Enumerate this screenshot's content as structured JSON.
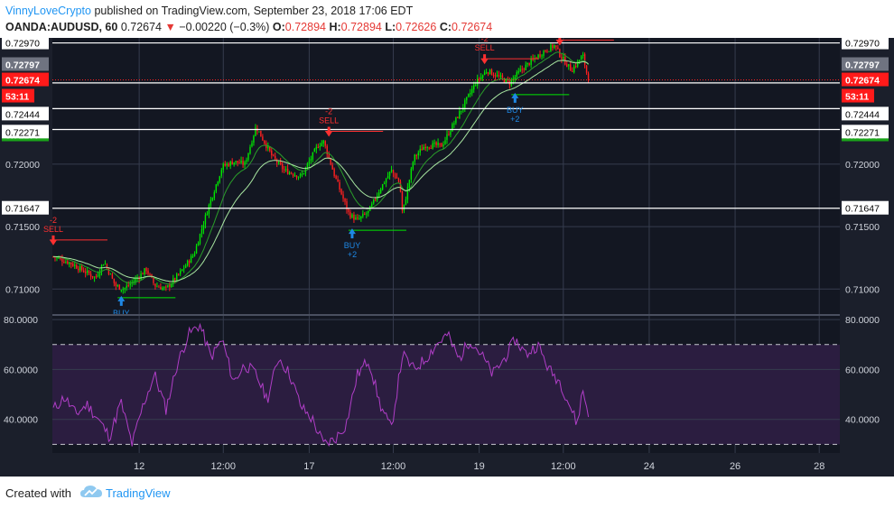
{
  "header": {
    "author": "VinnyLoveCrypto",
    "published_text": "published on TradingView.com, September 23, 2018 17:06 EDT",
    "symbol": "OANDA:AUDUSD, 60",
    "last": "0.72674",
    "change_arrow": "▼",
    "change": "−0.00220 (−0.3%)",
    "o_label": "O:",
    "o_value": "0.72894",
    "h_label": "H:",
    "h_value": "0.72894",
    "l_label": "L:",
    "l_value": "0.72626",
    "c_label": "C:",
    "c_value": "0.72674"
  },
  "footer": {
    "created_with": "Created with",
    "brand": "TradingView"
  },
  "colors": {
    "background": "#131722",
    "grid": "#363c4e",
    "up": "#00e600",
    "down": "#ff2020",
    "ema_fast": "#2a9d2a",
    "ema_slow": "#a8e6a1",
    "rsi_line": "#b03ec7",
    "rsi_band": "#2b1d40",
    "sell": "#ff3030",
    "buy": "#1e88e5",
    "level": "#ffffff"
  },
  "chart_data": [
    {
      "type": "candlestick",
      "pane": "price",
      "ylim": [
        0.708,
        0.7301
      ],
      "price_ticks": [
        "0.72970",
        "0.72797",
        "0.72674",
        "0.72444",
        "0.72277",
        "0.72271",
        "0.72000",
        "0.71647",
        "0.71500",
        "0.71000"
      ],
      "time_ticks": [
        "12",
        "12:00",
        "17",
        "12:00",
        "19",
        "12:00",
        "24",
        "26",
        "28"
      ],
      "countdown": "53:11",
      "horizontal_levels": [
        0.7297,
        0.7265,
        0.72444,
        0.72277,
        0.71647
      ],
      "current_price": 0.72674,
      "path_points": [
        [
          0,
          0.7126
        ],
        [
          6,
          0.7121
        ],
        [
          12,
          0.7113
        ],
        [
          15,
          0.7109
        ],
        [
          18,
          0.7122
        ],
        [
          22,
          0.7103
        ],
        [
          25,
          0.71
        ],
        [
          30,
          0.7109
        ],
        [
          33,
          0.7116
        ],
        [
          36,
          0.7103
        ],
        [
          40,
          0.71
        ],
        [
          45,
          0.7113
        ],
        [
          50,
          0.7128
        ],
        [
          55,
          0.7165
        ],
        [
          60,
          0.7198
        ],
        [
          64,
          0.7202
        ],
        [
          68,
          0.72
        ],
        [
          72,
          0.723
        ],
        [
          78,
          0.7205
        ],
        [
          82,
          0.7195
        ],
        [
          88,
          0.719
        ],
        [
          94,
          0.7215
        ],
        [
          96,
          0.7218
        ],
        [
          100,
          0.719
        ],
        [
          105,
          0.716
        ],
        [
          108,
          0.7155
        ],
        [
          112,
          0.7162
        ],
        [
          116,
          0.718
        ],
        [
          120,
          0.7195
        ],
        [
          123,
          0.7185
        ],
        [
          124,
          0.716
        ],
        [
          128,
          0.7205
        ],
        [
          132,
          0.7215
        ],
        [
          138,
          0.7215
        ],
        [
          144,
          0.724
        ],
        [
          150,
          0.7265
        ],
        [
          154,
          0.7275
        ],
        [
          158,
          0.727
        ],
        [
          162,
          0.7265
        ],
        [
          166,
          0.7275
        ],
        [
          170,
          0.7283
        ],
        [
          174,
          0.729
        ],
        [
          178,
          0.7295
        ],
        [
          180,
          0.7287
        ],
        [
          184,
          0.7275
        ],
        [
          188,
          0.7287
        ],
        [
          190,
          0.7267
        ]
      ],
      "annotations": [
        {
          "kind": "sell",
          "label": "SELL",
          "qty": "-2",
          "x": 0,
          "price": 0.71335
        },
        {
          "kind": "buy",
          "label": "BUY",
          "qty": "",
          "x": 24,
          "price": 0.7096
        },
        {
          "kind": "sell",
          "label": "SELL",
          "qty": "-2",
          "x": 98,
          "price": 0.72205
        },
        {
          "kind": "buy",
          "label": "BUY",
          "qty": "+2",
          "x": 106,
          "price": 0.715
        },
        {
          "kind": "sell",
          "label": "SELL",
          "qty": "-2",
          "x": 153,
          "price": 0.72785
        },
        {
          "kind": "buy",
          "label": "BUY",
          "qty": "+2",
          "x": 164,
          "price": 0.72585
        },
        {
          "kind": "sell",
          "label": "SELL",
          "qty": "",
          "x": 180,
          "price": 0.72935
        }
      ]
    },
    {
      "type": "line",
      "pane": "rsi",
      "ylim": [
        26.5,
        81.5
      ],
      "ticks": [
        "80.0000",
        "60.0000",
        "40.0000"
      ],
      "bands": [
        70,
        30
      ],
      "path_points": [
        [
          0,
          44
        ],
        [
          4,
          49
        ],
        [
          8,
          42
        ],
        [
          12,
          46
        ],
        [
          16,
          40
        ],
        [
          20,
          33
        ],
        [
          24,
          47
        ],
        [
          28,
          30
        ],
        [
          32,
          46
        ],
        [
          36,
          58
        ],
        [
          40,
          44
        ],
        [
          44,
          62
        ],
        [
          48,
          74
        ],
        [
          52,
          78
        ],
        [
          56,
          65
        ],
        [
          60,
          72
        ],
        [
          64,
          55
        ],
        [
          68,
          62
        ],
        [
          72,
          58
        ],
        [
          76,
          48
        ],
        [
          80,
          65
        ],
        [
          84,
          58
        ],
        [
          88,
          45
        ],
        [
          92,
          40
        ],
        [
          96,
          30
        ],
        [
          100,
          32
        ],
        [
          104,
          38
        ],
        [
          108,
          58
        ],
        [
          112,
          64
        ],
        [
          116,
          46
        ],
        [
          120,
          36
        ],
        [
          124,
          66
        ],
        [
          128,
          60
        ],
        [
          132,
          64
        ],
        [
          136,
          70
        ],
        [
          140,
          74
        ],
        [
          144,
          64
        ],
        [
          148,
          72
        ],
        [
          152,
          66
        ],
        [
          156,
          58
        ],
        [
          160,
          64
        ],
        [
          164,
          72
        ],
        [
          168,
          66
        ],
        [
          172,
          70
        ],
        [
          176,
          60
        ],
        [
          180,
          55
        ],
        [
          184,
          44
        ],
        [
          186,
          38
        ],
        [
          188,
          52
        ],
        [
          190,
          42
        ]
      ]
    }
  ]
}
